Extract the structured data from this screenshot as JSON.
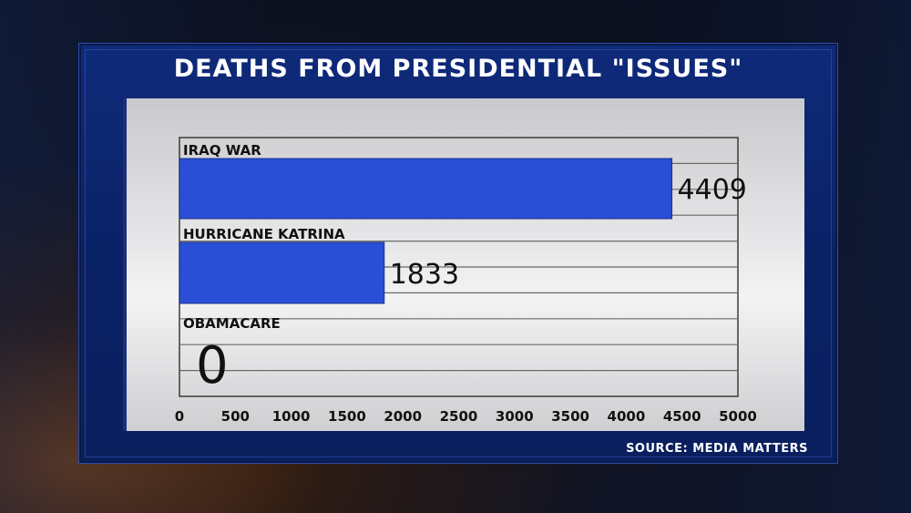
{
  "title": "DEATHS FROM PRESIDENTIAL \"ISSUES\"",
  "source": "SOURCE: MEDIA MATTERS",
  "chart_data": {
    "type": "bar",
    "orientation": "horizontal",
    "categories": [
      "IRAQ WAR",
      "HURRICANE KATRINA",
      "OBAMACARE"
    ],
    "values": [
      4409,
      1833,
      0
    ],
    "value_labels": [
      "4409",
      "1833",
      "0"
    ],
    "xlim": [
      0,
      5000
    ],
    "xticks": [
      "0",
      "500",
      "1000",
      "1500",
      "2000",
      "2500",
      "3000",
      "3500",
      "4000",
      "4500",
      "5000"
    ],
    "grid": true,
    "bar_color": "#2a4fd6"
  }
}
